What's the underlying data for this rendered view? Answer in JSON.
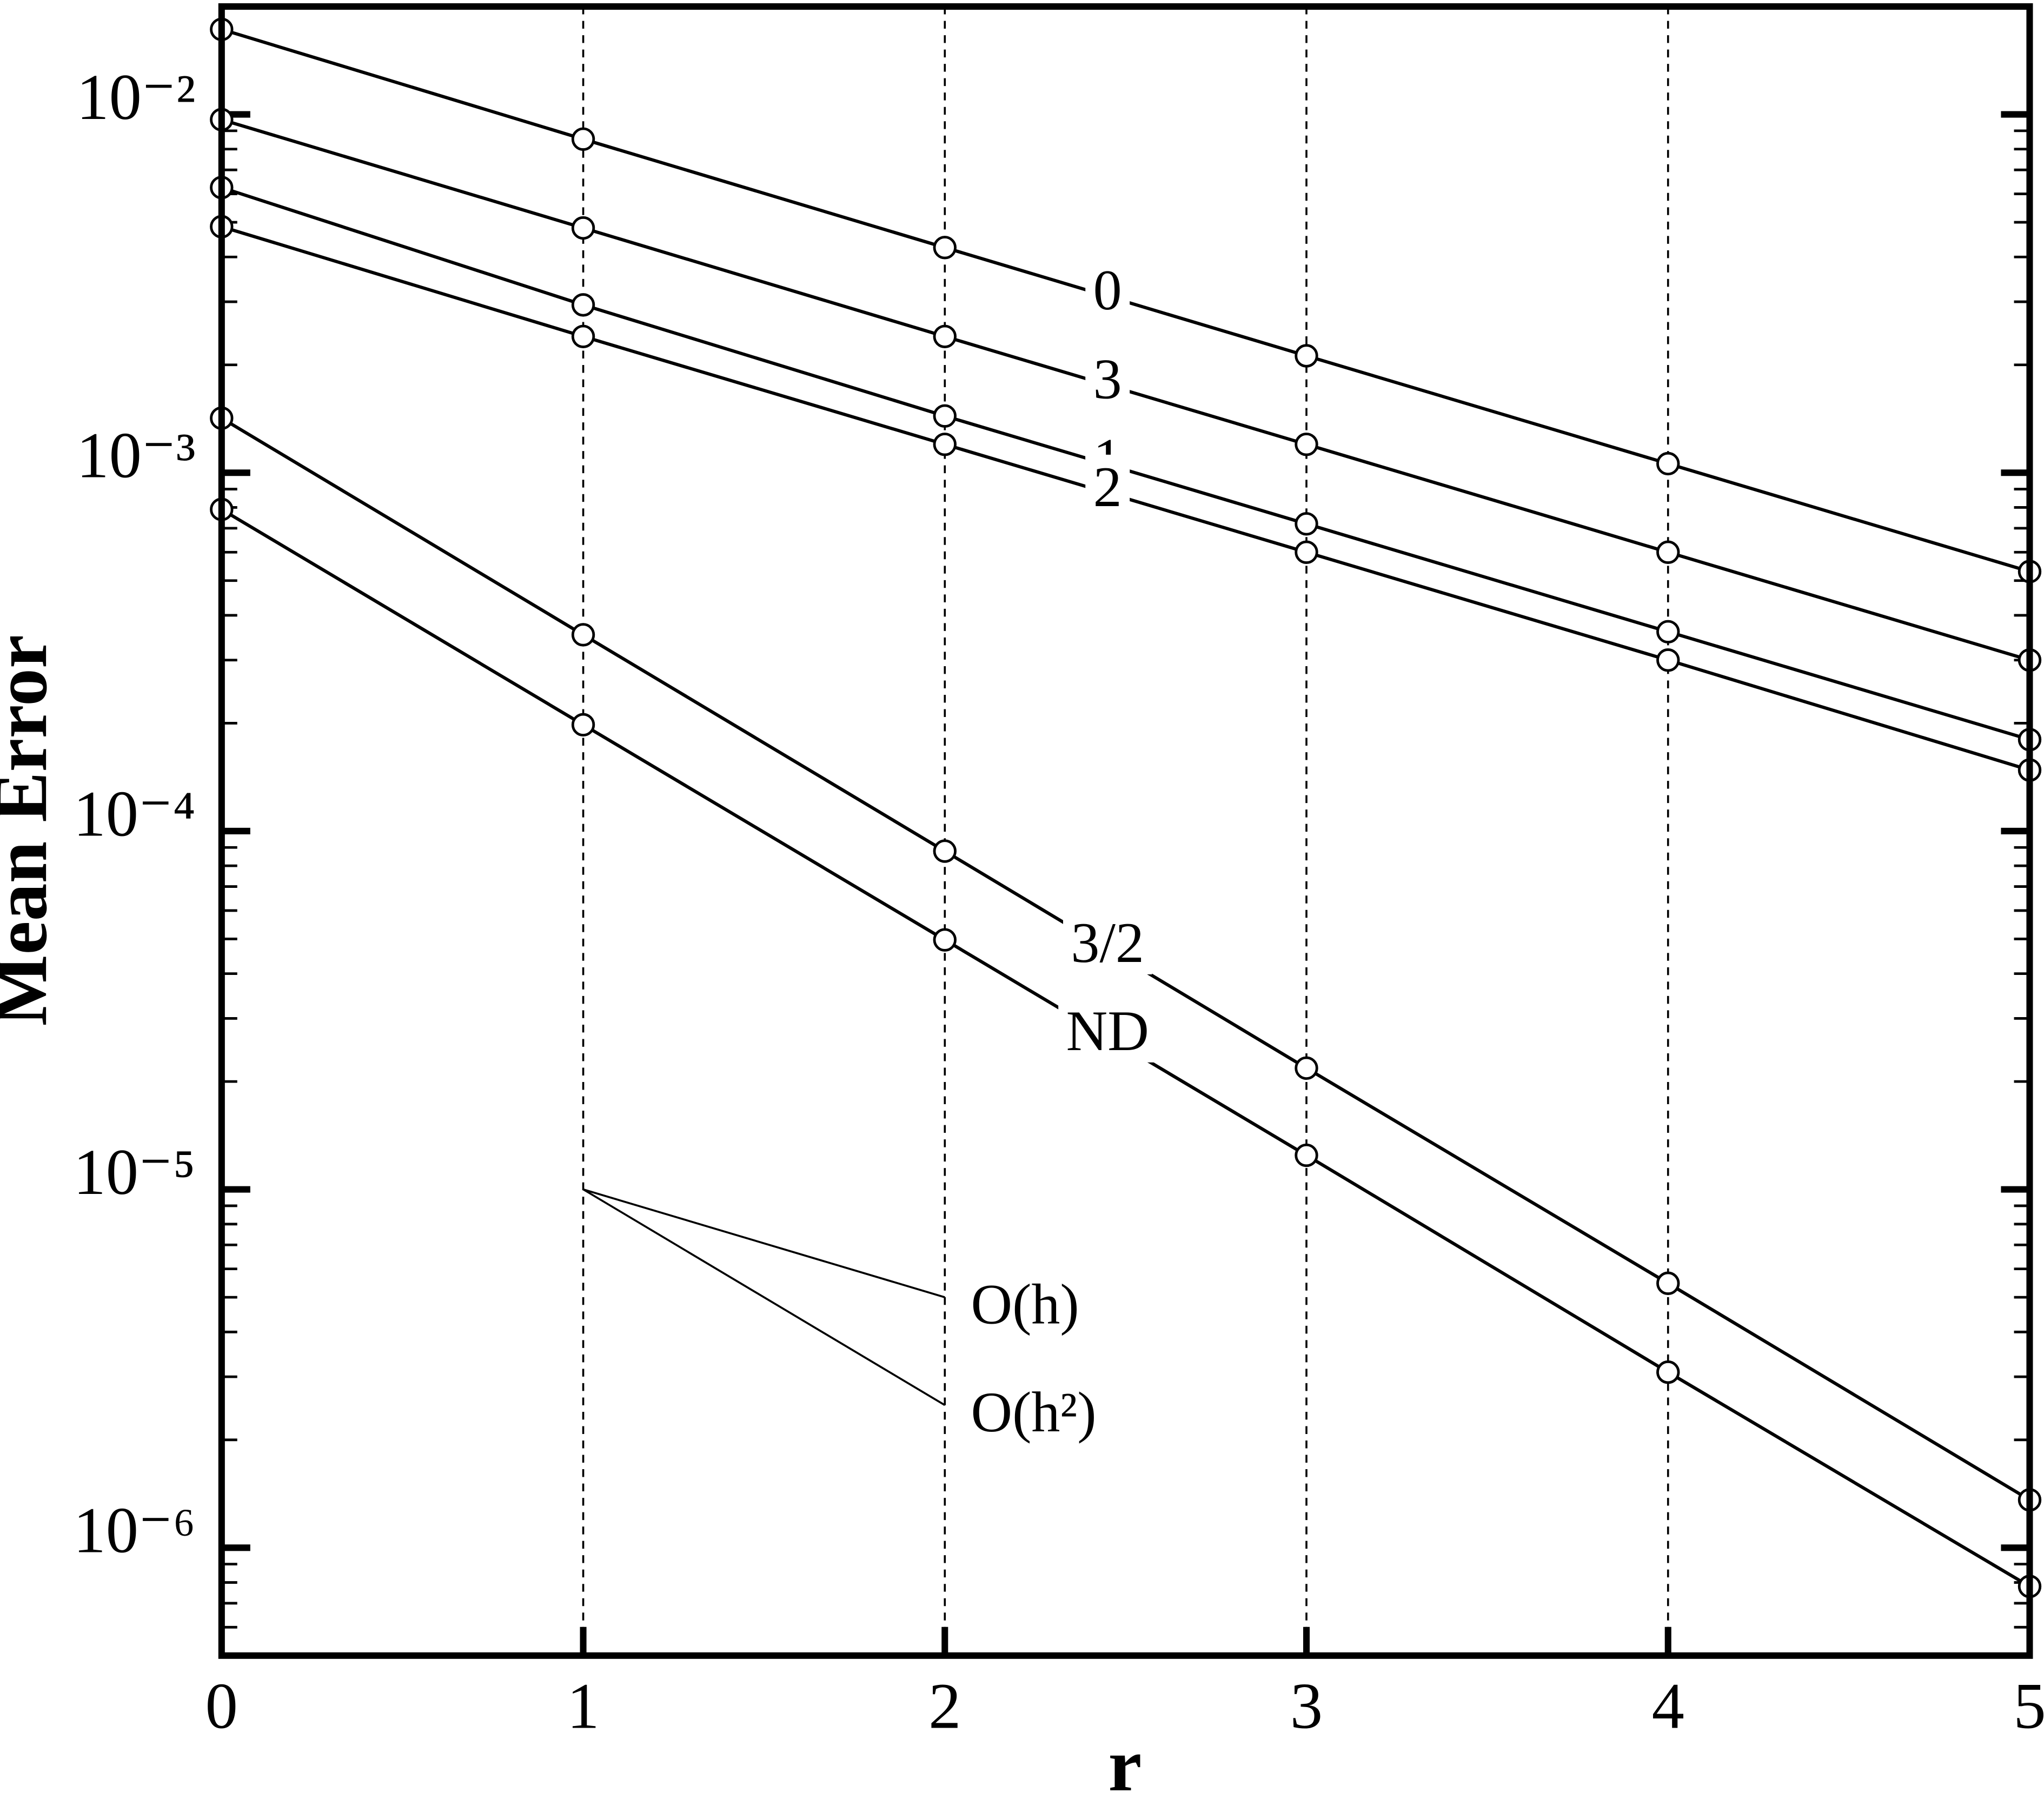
{
  "chart_data": {
    "type": "line",
    "xlabel": "r",
    "ylabel": "Mean Error",
    "x": [
      0,
      1,
      2,
      3,
      4,
      5
    ],
    "xlim": [
      0,
      5
    ],
    "xticks": [
      0,
      1,
      2,
      3,
      4,
      5
    ],
    "ylim": [
      5e-07,
      0.02
    ],
    "log_y": true,
    "yticks": [
      {
        "value": 0.01,
        "label": "10⁻²"
      },
      {
        "value": 0.001,
        "label": "10⁻³"
      },
      {
        "value": 0.0001,
        "label": "10⁻⁴"
      },
      {
        "value": 1e-05,
        "label": "10⁻⁵"
      },
      {
        "value": 1e-06,
        "label": "10⁻⁶"
      }
    ],
    "yminorticks": [
      0.02,
      0.009,
      0.008,
      0.007,
      0.006,
      0.005,
      0.004,
      0.003,
      0.002,
      0.0009,
      0.0008,
      0.0007,
      0.0006,
      0.0005,
      0.0004,
      0.0003,
      0.0002,
      9e-05,
      8e-05,
      7e-05,
      6e-05,
      5e-05,
      4e-05,
      3e-05,
      2e-05,
      9e-06,
      8e-06,
      7e-06,
      6e-06,
      5e-06,
      4e-06,
      3e-06,
      2e-06,
      9e-07,
      8e-07,
      7e-07,
      6e-07,
      5e-07
    ],
    "grid": "x-dashed",
    "series": [
      {
        "name": "0",
        "color": "#000000",
        "values": [
          0.01727,
          0.00853,
          0.00425,
          0.00212,
          0.00106,
          0.00053
        ]
      },
      {
        "name": "3",
        "color": "#000000",
        "values": [
          0.00967,
          0.00482,
          0.0024,
          0.0012,
          0.0006,
          0.0003
        ]
      },
      {
        "name": "1",
        "color": "#000000",
        "values": [
          0.00625,
          0.00294,
          0.00144,
          0.00072,
          0.00036,
          0.00018
        ]
      },
      {
        "name": "2",
        "color": "#000000",
        "values": [
          0.00486,
          0.0024,
          0.0012,
          0.0006,
          0.0003,
          0.000148
        ]
      },
      {
        "name": "3/2",
        "color": "#000000",
        "values": [
          0.00142,
          0.000353,
          8.79e-05,
          2.18e-05,
          5.47e-06,
          1.36e-06
        ]
      },
      {
        "name": "ND",
        "color": "#000000",
        "values": [
          0.00079,
          0.000198,
          4.97e-05,
          1.245e-05,
          3.09e-06,
          7.8e-07
        ]
      }
    ],
    "annotations": [
      {
        "text": "O(h)",
        "x": [
          1,
          2
        ],
        "y": [
          1e-05,
          5e-06
        ]
      },
      {
        "text": "O(h²)",
        "x": [
          1,
          2
        ],
        "y": [
          1e-05,
          2.5e-06
        ]
      }
    ]
  }
}
